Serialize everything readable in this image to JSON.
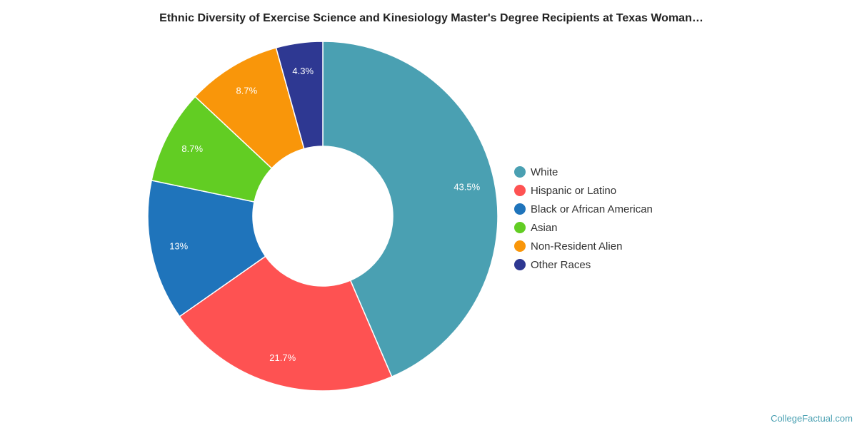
{
  "chart_data": {
    "type": "pie",
    "title": "Ethnic Diversity of Exercise Science and Kinesiology Master's Degree Recipients at Texas Woman…",
    "categories": [
      "White",
      "Hispanic or Latino",
      "Black or African American",
      "Asian",
      "Non-Resident Alien",
      "Other Races"
    ],
    "values": [
      43.5,
      21.7,
      13,
      8.7,
      8.7,
      4.3
    ],
    "labels": [
      "43.5%",
      "21.7%",
      "13%",
      "8.7%",
      "8.7%",
      "4.3%"
    ],
    "colors": [
      "#4aa0b2",
      "#fe5252",
      "#1f74bb",
      "#62cd23",
      "#f9960a",
      "#2e3892"
    ],
    "donut": true,
    "legend_position": "right"
  },
  "credit": "CollegeFactual.com"
}
